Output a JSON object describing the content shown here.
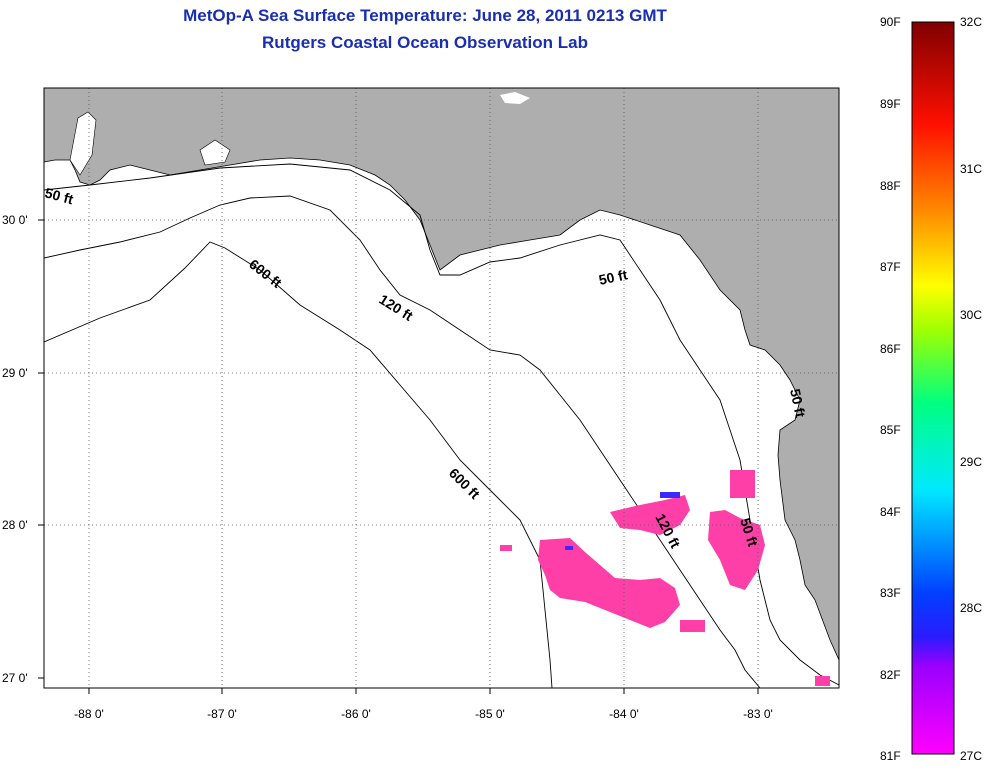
{
  "title": {
    "line1": "MetOp-A Sea Surface Temperature:  June 28, 2011 0213 GMT",
    "line2": "Rutgers Coastal Ocean Observation Lab"
  },
  "axes": {
    "lat_labels": [
      "30 0'",
      "29 0'",
      "28 0'",
      "27 0'"
    ],
    "lon_labels": [
      "-88 0'",
      "-87 0'",
      "-86 0'",
      "-85 0'",
      "-84 0'",
      "-83 0'"
    ]
  },
  "contour_labels": {
    "c50_west": "50 ft",
    "c50_east": "50 ft",
    "c50_south": "50 ft",
    "c50_coast": "50 ft",
    "c120_north": "120 ft",
    "c120_south": "120 ft",
    "c600_north": "600 ft",
    "c600_south": "600 ft"
  },
  "colorbar": {
    "fahrenheit": [
      "90F",
      "89F",
      "88F",
      "87F",
      "86F",
      "85F",
      "84F",
      "83F",
      "82F",
      "81F"
    ],
    "celsius": [
      "32C",
      "31C",
      "30C",
      "29C",
      "28C",
      "27C"
    ]
  },
  "colors": {
    "land": "#aeaeae",
    "title": "#1a2fb0",
    "sst_pink": "#ff3fa8"
  }
}
